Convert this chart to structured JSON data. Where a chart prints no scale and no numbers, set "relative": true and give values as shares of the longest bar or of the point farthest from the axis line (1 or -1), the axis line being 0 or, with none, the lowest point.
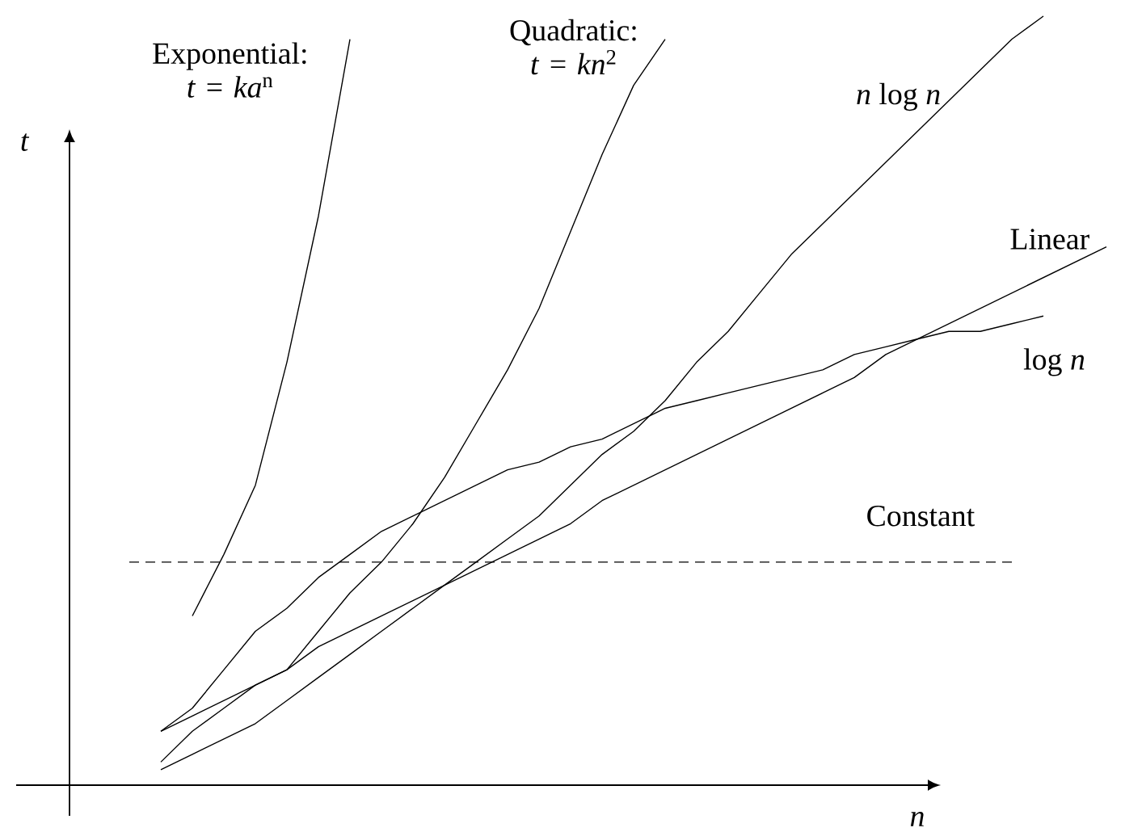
{
  "chart_data": {
    "type": "line",
    "relative": true,
    "xlabel": "n",
    "ylabel": "t",
    "categories": [
      null,
      null,
      null,
      null,
      null,
      null,
      null,
      null,
      null,
      null,
      null,
      null,
      null,
      null,
      null,
      null,
      null,
      null,
      null,
      null,
      null,
      null,
      null,
      null,
      null,
      null,
      null,
      null,
      null,
      null,
      null,
      null
    ],
    "series": [
      {
        "name": "Exponential: *t* = *ka*$^{n}$",
        "color": "#000000",
        "values": [
          null,
          null,
          0.22,
          0.3,
          0.39,
          0.55,
          0.74,
          0.97,
          null,
          null,
          null,
          null,
          null,
          null,
          null,
          null,
          null,
          null,
          null,
          null,
          null,
          null,
          null,
          null,
          null,
          null,
          null,
          null,
          null,
          null,
          null,
          null
        ]
      },
      {
        "name": "Quadratic: *t* = *kn*$^{2}$",
        "color": "#000000",
        "values": [
          null,
          0.03,
          0.07,
          0.1,
          0.13,
          0.15,
          0.2,
          0.25,
          0.29,
          0.34,
          0.4,
          0.47,
          0.54,
          0.62,
          0.72,
          0.82,
          0.91,
          0.97,
          null,
          null,
          null,
          null,
          null,
          null,
          null,
          null,
          null,
          null,
          null,
          null,
          null,
          null
        ]
      },
      {
        "name": "*n* log *n*",
        "color": "#000000",
        "values": [
          null,
          0.02,
          0.04,
          0.06,
          0.08,
          0.11,
          0.14,
          0.17,
          0.2,
          0.23,
          0.26,
          0.29,
          0.32,
          0.35,
          0.39,
          0.43,
          0.46,
          0.5,
          0.55,
          0.59,
          0.64,
          0.69,
          0.73,
          0.77,
          0.81,
          0.85,
          0.89,
          0.93,
          0.97,
          1.0,
          null,
          null
        ]
      },
      {
        "name": "Linear",
        "color": "#000000",
        "values": [
          null,
          0.07,
          0.09,
          0.11,
          0.13,
          0.15,
          0.18,
          0.2,
          0.22,
          0.24,
          0.26,
          0.28,
          0.3,
          0.32,
          0.34,
          0.37,
          0.39,
          0.41,
          0.43,
          0.45,
          0.47,
          0.49,
          0.51,
          0.53,
          0.56,
          0.58,
          0.6,
          0.62,
          0.64,
          0.66,
          0.68,
          0.7
        ]
      },
      {
        "name": "log *n*",
        "color": "#000000",
        "values": [
          null,
          0.07,
          0.1,
          0.15,
          0.2,
          0.23,
          0.27,
          0.3,
          0.33,
          0.35,
          0.37,
          0.39,
          0.41,
          0.42,
          0.44,
          0.45,
          0.47,
          0.49,
          0.5,
          0.51,
          0.52,
          0.53,
          0.54,
          0.56,
          0.57,
          0.58,
          0.59,
          0.59,
          0.6,
          0.61,
          null,
          null
        ]
      },
      {
        "name": "Constant",
        "color": "#000000",
        "line_style": "dashed",
        "values": [
          0.29,
          0.29,
          0.29,
          0.29,
          0.29,
          0.29,
          0.29,
          0.29,
          0.29,
          0.29,
          0.29,
          0.29,
          0.29,
          0.29,
          0.29,
          0.29,
          0.29,
          0.29,
          0.29,
          0.29,
          0.29,
          0.29,
          0.29,
          0.29,
          0.29,
          0.29,
          0.29,
          0.29,
          0.29,
          null,
          null,
          null
        ]
      }
    ]
  }
}
